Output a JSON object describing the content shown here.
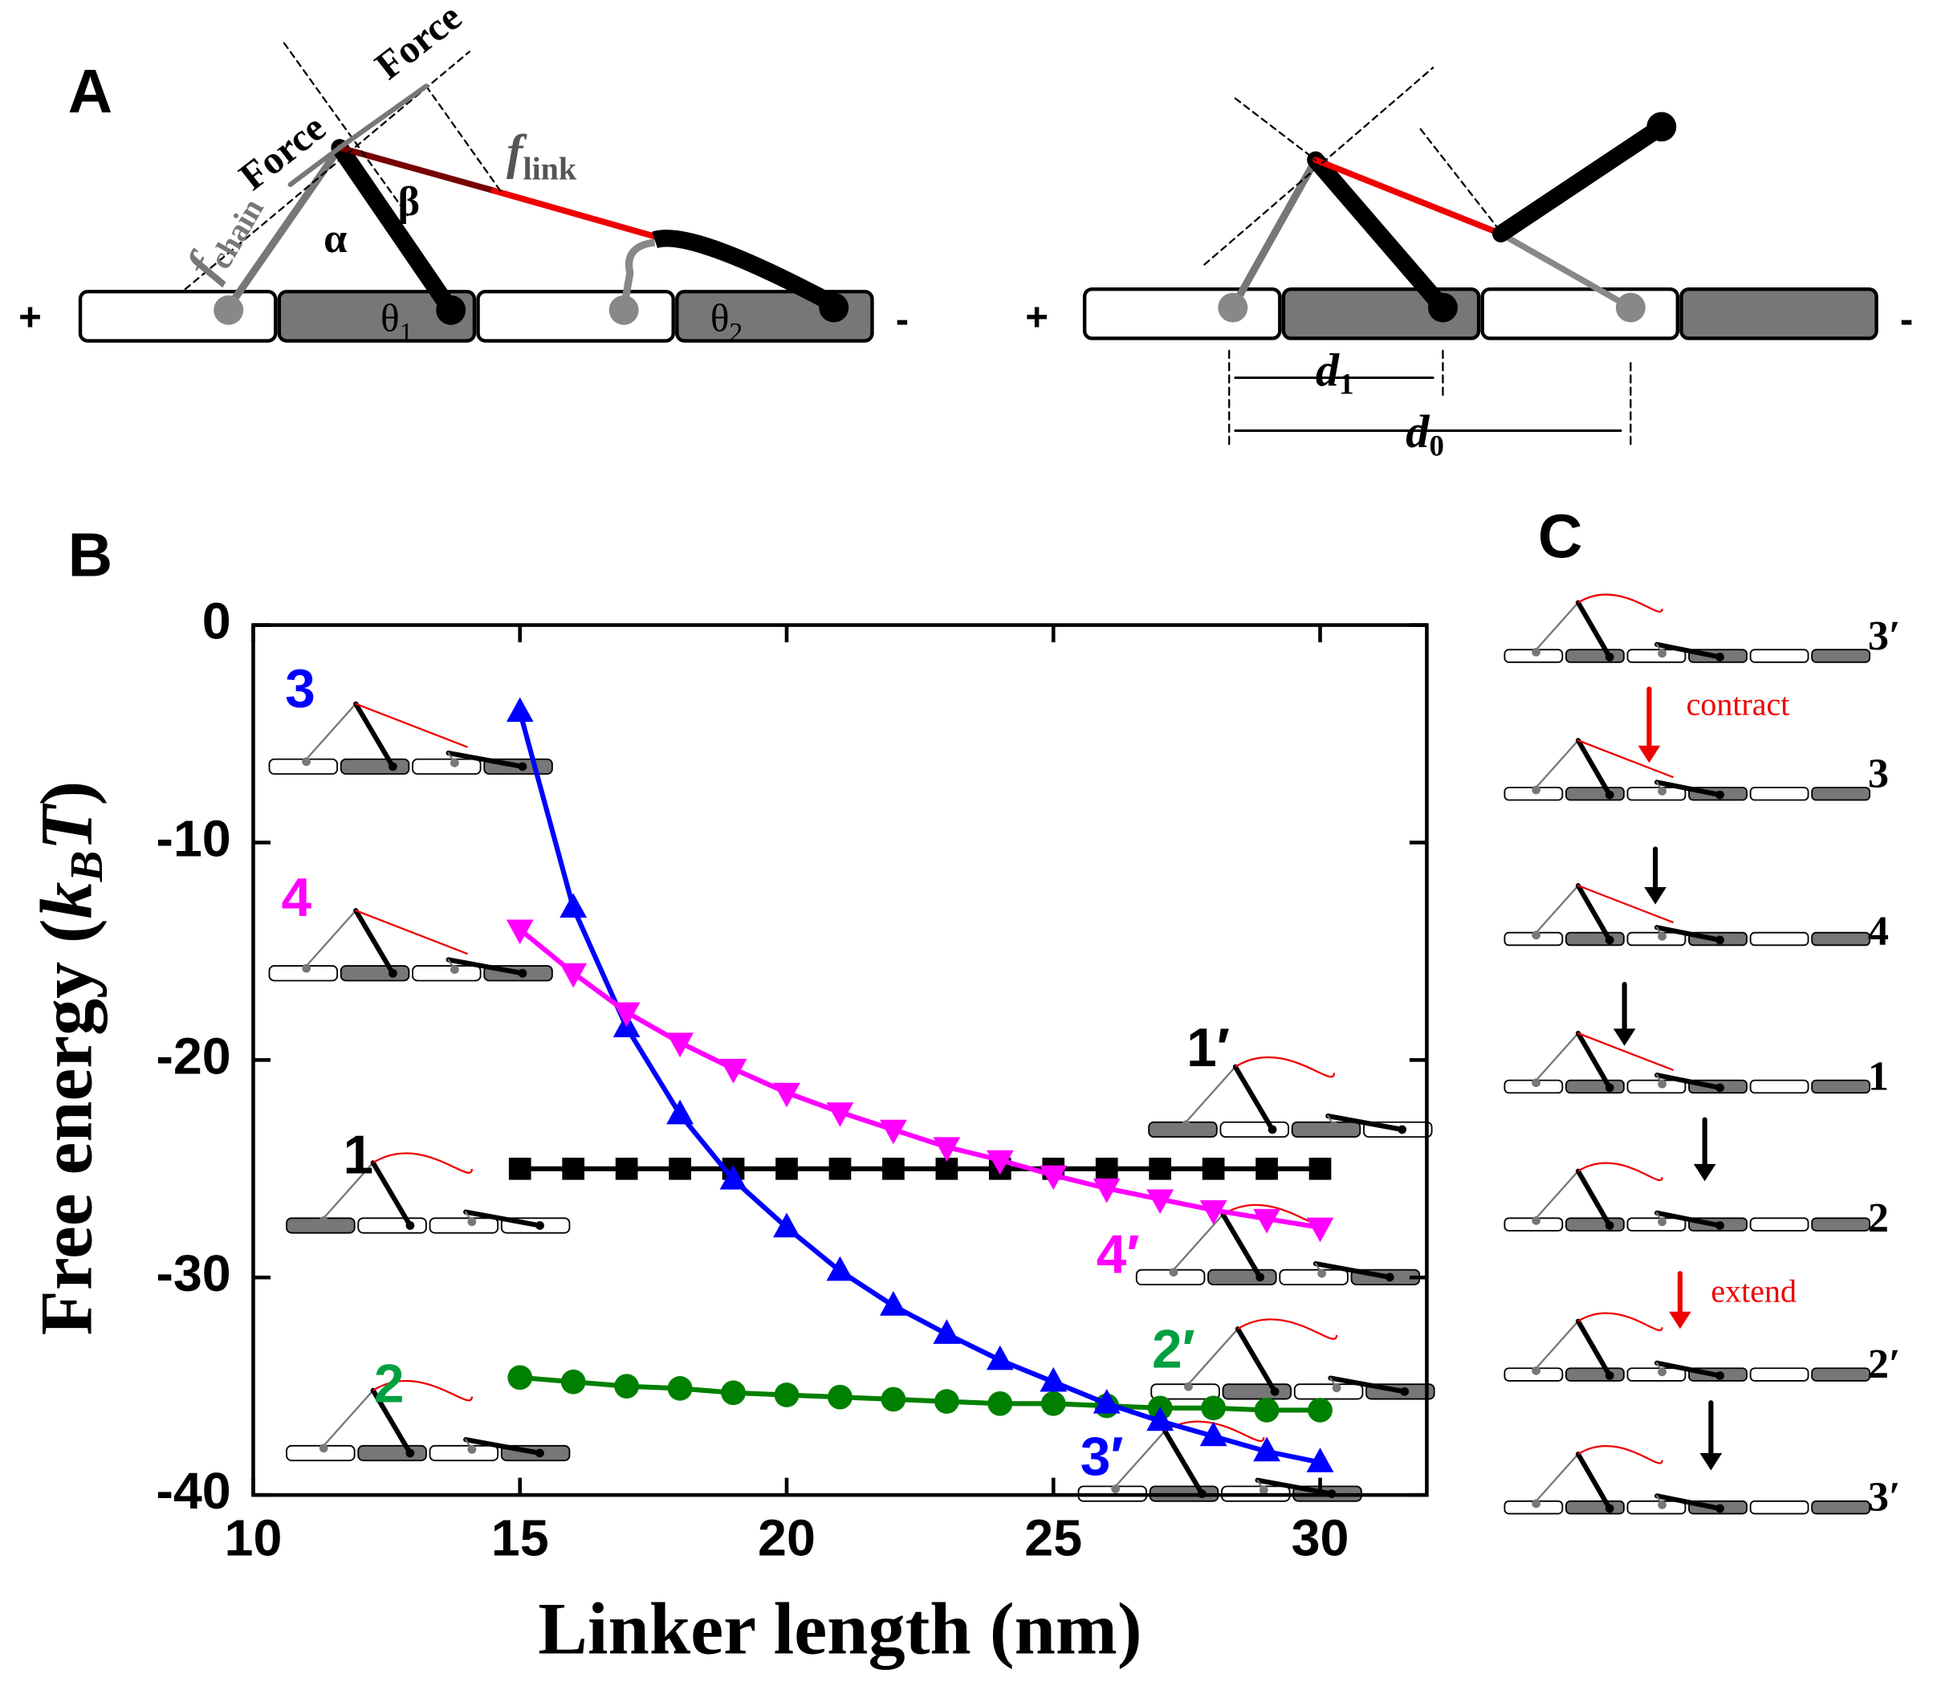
{
  "panel_labels": [
    "A",
    "B",
    "C"
  ],
  "panel_a": {
    "force_1": "Force",
    "force_2": "Force",
    "f_chain": {
      "symbol": "f",
      "subscript": "chain"
    },
    "f_link": {
      "symbol": "f",
      "subscript": "link"
    },
    "alpha": "α",
    "beta": "β",
    "theta_1": {
      "symbol": "θ",
      "subscript": "1"
    },
    "theta_2": {
      "symbol": "θ",
      "subscript": "2"
    },
    "plus": "+",
    "minus": "-",
    "d_1": {
      "symbol": "d",
      "subscript": "1"
    },
    "d_0": {
      "symbol": "d",
      "subscript": "0"
    }
  },
  "panel_c": {
    "states": [
      "3′",
      "3",
      "4",
      "1",
      "2",
      "2′",
      "3′"
    ],
    "contract": "contract",
    "extend": "extend"
  },
  "chart_data": {
    "type": "line",
    "x_label": "Linker length (nm)",
    "y_label": {
      "prefix": "Free energy (",
      "k": "k",
      "sub": "B",
      "t": "T",
      "suffix": ")"
    },
    "x": [
      15,
      16,
      17,
      18,
      19,
      20,
      21,
      22,
      23,
      24,
      25,
      26,
      27,
      28,
      29,
      30
    ],
    "series": [
      {
        "name": "1",
        "color": "#000000",
        "marker": "square",
        "values": [
          -25,
          -25,
          -25,
          -25,
          -25,
          -25,
          -25,
          -25,
          -25,
          -25,
          -25,
          -25,
          -25,
          -25,
          -25,
          -25
        ]
      },
      {
        "name": "2",
        "color": "#008000",
        "marker": "circle",
        "values": [
          -34.6,
          -34.8,
          -35,
          -35.1,
          -35.3,
          -35.4,
          -35.5,
          -35.6,
          -35.7,
          -35.8,
          -35.8,
          -35.9,
          -36,
          -36,
          -36.1,
          -36.1
        ]
      },
      {
        "name": "3",
        "color": "#0000ff",
        "marker": "triangle-up",
        "values": [
          -4,
          -13,
          -18.5,
          -22.5,
          -25.5,
          -27.7,
          -29.7,
          -31.3,
          -32.6,
          -33.8,
          -34.8,
          -35.8,
          -36.6,
          -37.3,
          -38,
          -38.5
        ]
      },
      {
        "name": "4",
        "color": "#ff00ff",
        "marker": "triangle-down",
        "values": [
          -14,
          -16,
          -17.8,
          -19.2,
          -20.4,
          -21.5,
          -22.4,
          -23.2,
          -24,
          -24.6,
          -25.3,
          -25.9,
          -26.4,
          -26.9,
          -27.3,
          -27.7
        ]
      }
    ],
    "annotations": [
      {
        "text": "1′",
        "color": "#000000"
      },
      {
        "text": "2′",
        "color": "#00a040"
      },
      {
        "text": "3′",
        "color": "#0000ff"
      },
      {
        "text": "4′",
        "color": "#ff00ff"
      }
    ],
    "xlim": [
      10,
      32
    ],
    "xticks": [
      10,
      15,
      20,
      25,
      30
    ],
    "ylim": [
      -40,
      0
    ],
    "yticks": [
      0,
      -10,
      -20,
      -30,
      -40
    ]
  }
}
